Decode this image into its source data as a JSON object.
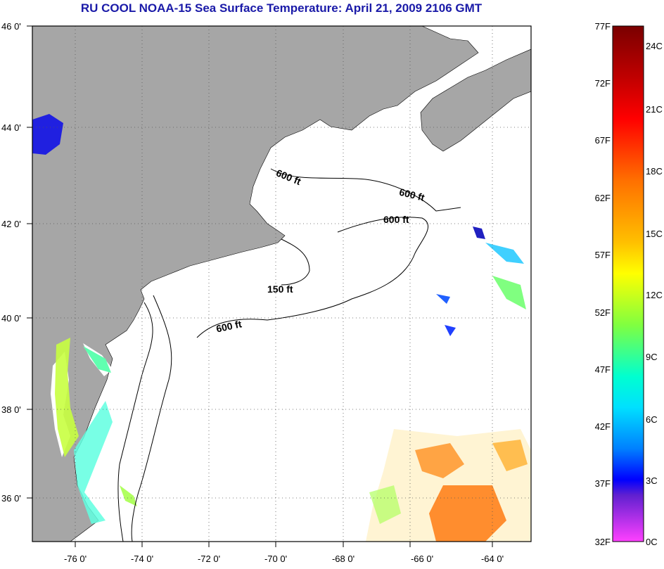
{
  "title": "RU COOL  NOAA-15  Sea Surface Temperature:  April 21, 2009 2106 GMT",
  "map": {
    "lat_labels": [
      "46 0'",
      "44 0'",
      "42 0'",
      "40 0'",
      "38 0'",
      "36 0'"
    ],
    "lon_labels": [
      "-76 0'",
      "-74 0'",
      "-72 0'",
      "-70 0'",
      "-68 0'",
      "-66 0'",
      "-64 0'"
    ],
    "depth_labels": [
      "600 ft",
      "600 ft",
      "600 ft",
      "150 ft",
      "600 ft"
    ],
    "colors": {
      "land": "#a6a6a6",
      "water": "#ffffff",
      "grid": "#555555"
    }
  },
  "colorbar": {
    "fahrenheit": [
      "77F",
      "72F",
      "67F",
      "62F",
      "57F",
      "52F",
      "47F",
      "42F",
      "37F",
      "32F"
    ],
    "celsius": [
      "24C",
      "21C",
      "18C",
      "15C",
      "12C",
      "9C",
      "6C",
      "3C",
      "0C"
    ],
    "colors": [
      "#800000",
      "#ff0000",
      "#ff8000",
      "#ffff00",
      "#80ff00",
      "#00ffff",
      "#0080ff",
      "#0000ff",
      "#8000ff",
      "#ff40ff"
    ]
  }
}
